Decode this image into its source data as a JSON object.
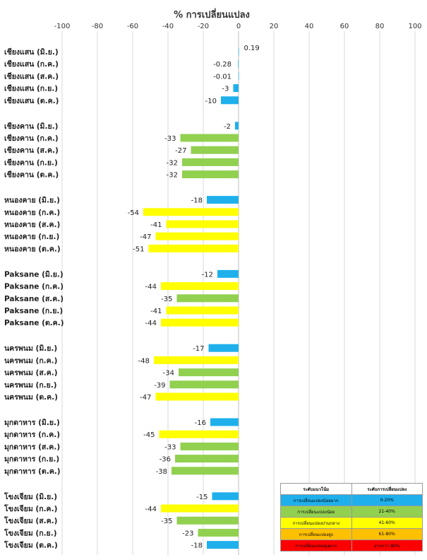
{
  "chart_data": {
    "type": "bar",
    "orientation": "horizontal",
    "title": "% การเปลี่ยนแปลง",
    "xlim": [
      -100,
      100
    ],
    "xticks": [
      -100,
      -80,
      -60,
      -40,
      -20,
      0,
      20,
      40,
      60,
      80,
      100
    ],
    "grid": true,
    "groups": [
      {
        "rows": [
          {
            "label": "เชียงแสน (มิ.ย.)",
            "value": 0.19,
            "display": "0.19"
          },
          {
            "label": "เชียงแสน (ก.ค.)",
            "value": -0.28,
            "display": "-0.28"
          },
          {
            "label": "เชียงแสน (ส.ค.)",
            "value": -0.01,
            "display": "-0.01"
          },
          {
            "label": "เชียงแสน (ก.ย.)",
            "value": -3,
            "display": "-3"
          },
          {
            "label": "เชียงแสน (ต.ค.)",
            "value": -10,
            "display": "-10"
          }
        ]
      },
      {
        "rows": [
          {
            "label": "เชียงคาน (มิ.ย.)",
            "value": -2,
            "display": "-2"
          },
          {
            "label": "เชียงคาน (ก.ค.)",
            "value": -33,
            "display": "-33"
          },
          {
            "label": "เชียงคาน (ส.ค.)",
            "value": -27,
            "display": "-27"
          },
          {
            "label": "เชียงคาน (ก.ย.)",
            "value": -32,
            "display": "-32"
          },
          {
            "label": "เชียงคาน (ต.ค.)",
            "value": -32,
            "display": "-32"
          }
        ]
      },
      {
        "rows": [
          {
            "label": "หนองคาย (มิ.ย.)",
            "value": -18,
            "display": "-18"
          },
          {
            "label": "หนองคาย (ก.ค.)",
            "value": -54,
            "display": "-54"
          },
          {
            "label": "หนองคาย (ส.ค.)",
            "value": -41,
            "display": "-41"
          },
          {
            "label": "หนองคาย (ก.ย.)",
            "value": -47,
            "display": "-47"
          },
          {
            "label": "หนองคาย (ต.ค.)",
            "value": -51,
            "display": "-51"
          }
        ]
      },
      {
        "rows": [
          {
            "label": "Paksane (มิ.ย.)",
            "value": -12,
            "display": "-12"
          },
          {
            "label": "Paksane (ก.ค.)",
            "value": -44,
            "display": "-44"
          },
          {
            "label": "Paksane (ส.ค.)",
            "value": -35,
            "display": "-35"
          },
          {
            "label": "Paksane (ก.ย.)",
            "value": -41,
            "display": "-41"
          },
          {
            "label": "Paksane (ต.ค.)",
            "value": -44,
            "display": "-44"
          }
        ]
      },
      {
        "rows": [
          {
            "label": "นครพนม (มิ.ย.)",
            "value": -17,
            "display": "-17"
          },
          {
            "label": "นครพนม (ก.ค.)",
            "value": -48,
            "display": "-48"
          },
          {
            "label": "นครพนม (ส.ค.)",
            "value": -34,
            "display": "-34"
          },
          {
            "label": "นครพนม (ก.ย.)",
            "value": -39,
            "display": "-39"
          },
          {
            "label": "นครพนม (ต.ค.)",
            "value": -47,
            "display": "-47"
          }
        ]
      },
      {
        "rows": [
          {
            "label": "มุกดาหาร (มิ.ย.)",
            "value": -16,
            "display": "-16"
          },
          {
            "label": "มุกดาหาร (ก.ค.)",
            "value": -45,
            "display": "-45"
          },
          {
            "label": "มุกดาหาร (ส.ค.)",
            "value": -33,
            "display": "-33"
          },
          {
            "label": "มุกดาหาร (ก.ย.)",
            "value": -36,
            "display": "-36"
          },
          {
            "label": "มุกดาหาร (ต.ค.)",
            "value": -38,
            "display": "-38"
          }
        ]
      },
      {
        "rows": [
          {
            "label": "โขงเจียม (มิ.ย.)",
            "value": -15,
            "display": "-15"
          },
          {
            "label": "โขงเจียม (ก.ค.)",
            "value": -44,
            "display": "-44"
          },
          {
            "label": "โขงเจียม (ส.ค.)",
            "value": -35,
            "display": "-35"
          },
          {
            "label": "โขงเจียม (ก.ย.)",
            "value": -23,
            "display": "-23"
          },
          {
            "label": "โขงเจียม (ต.ค.)",
            "value": -18,
            "display": "-18"
          }
        ]
      }
    ],
    "color_scale": [
      {
        "max": 20,
        "color": "#1fb0ec"
      },
      {
        "max": 40,
        "color": "#92d050"
      },
      {
        "max": 60,
        "color": "#ffff00"
      },
      {
        "max": 80,
        "color": "#ffc000"
      },
      {
        "max": 1000,
        "color": "#ff0000"
      }
    ],
    "legend": {
      "placement": "bottom-right",
      "headers": [
        "ระดับแนวโน้ม",
        "ระดับการเปลี่ยนแปลง"
      ],
      "rows": [
        {
          "level": "การเปลี่ยนแปลงน้อยมาก",
          "range": "0-20%",
          "color": "#1fb0ec"
        },
        {
          "level": "การเปลี่ยนแปลงน้อย",
          "range": "21-40%",
          "color": "#92d050"
        },
        {
          "level": "การเปลี่ยนแปลงปานกลาง",
          "range": "41-60%",
          "color": "#ffff00"
        },
        {
          "level": "การเปลี่ยนแปลงสูง",
          "range": "61-80%",
          "color": "#ffc000"
        },
        {
          "level": "การเปลี่ยนแปลงสูงมาก",
          "range": "มากกว่า 80%",
          "color": "#ff0000"
        }
      ]
    }
  }
}
